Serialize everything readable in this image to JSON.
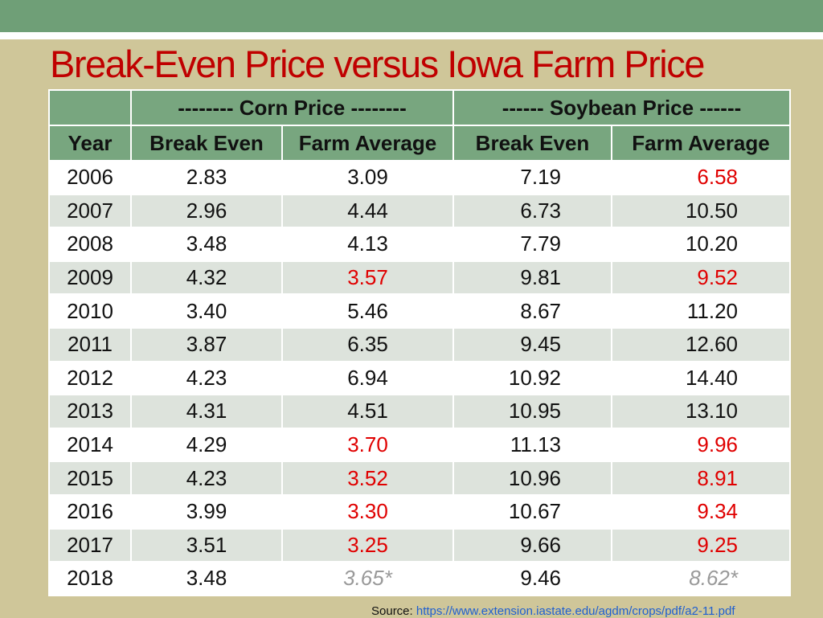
{
  "title": "Break-Even Price versus Iowa Farm Price",
  "table": {
    "group_headers": [
      "-------- Corn Price --------",
      "------ Soybean Price ------"
    ],
    "columns": [
      "Year",
      "Break Even",
      "Farm Average",
      "Break Even",
      "Farm Average"
    ],
    "rows": [
      [
        "2006",
        "2.83",
        "3.09",
        "7.19",
        "6.58"
      ],
      [
        "2007",
        "2.96",
        "4.44",
        "6.73",
        "10.50"
      ],
      [
        "2008",
        "3.48",
        "4.13",
        "7.79",
        "10.20"
      ],
      [
        "2009",
        "4.32",
        "3.57",
        "9.81",
        "9.52"
      ],
      [
        "2010",
        "3.40",
        "5.46",
        "8.67",
        "11.20"
      ],
      [
        "2011",
        "3.87",
        "6.35",
        "9.45",
        "12.60"
      ],
      [
        "2012",
        "4.23",
        "6.94",
        "10.92",
        "14.40"
      ],
      [
        "2013",
        "4.31",
        "4.51",
        "10.95",
        "13.10"
      ],
      [
        "2014",
        "4.29",
        "3.70",
        "11.13",
        "9.96"
      ],
      [
        "2015",
        "4.23",
        "3.52",
        "10.96",
        "8.91"
      ],
      [
        "2016",
        "3.99",
        "3.30",
        "10.67",
        "9.34"
      ],
      [
        "2017",
        "3.51",
        "3.25",
        "9.66",
        "9.25"
      ],
      [
        "2018",
        "3.48",
        "3.65*",
        "9.46",
        "8.62*"
      ]
    ]
  },
  "source": {
    "label": "Source:",
    "url": "https://www.extension.iastate.edu/agdm/crops/pdf/a2-11.pdf"
  }
}
